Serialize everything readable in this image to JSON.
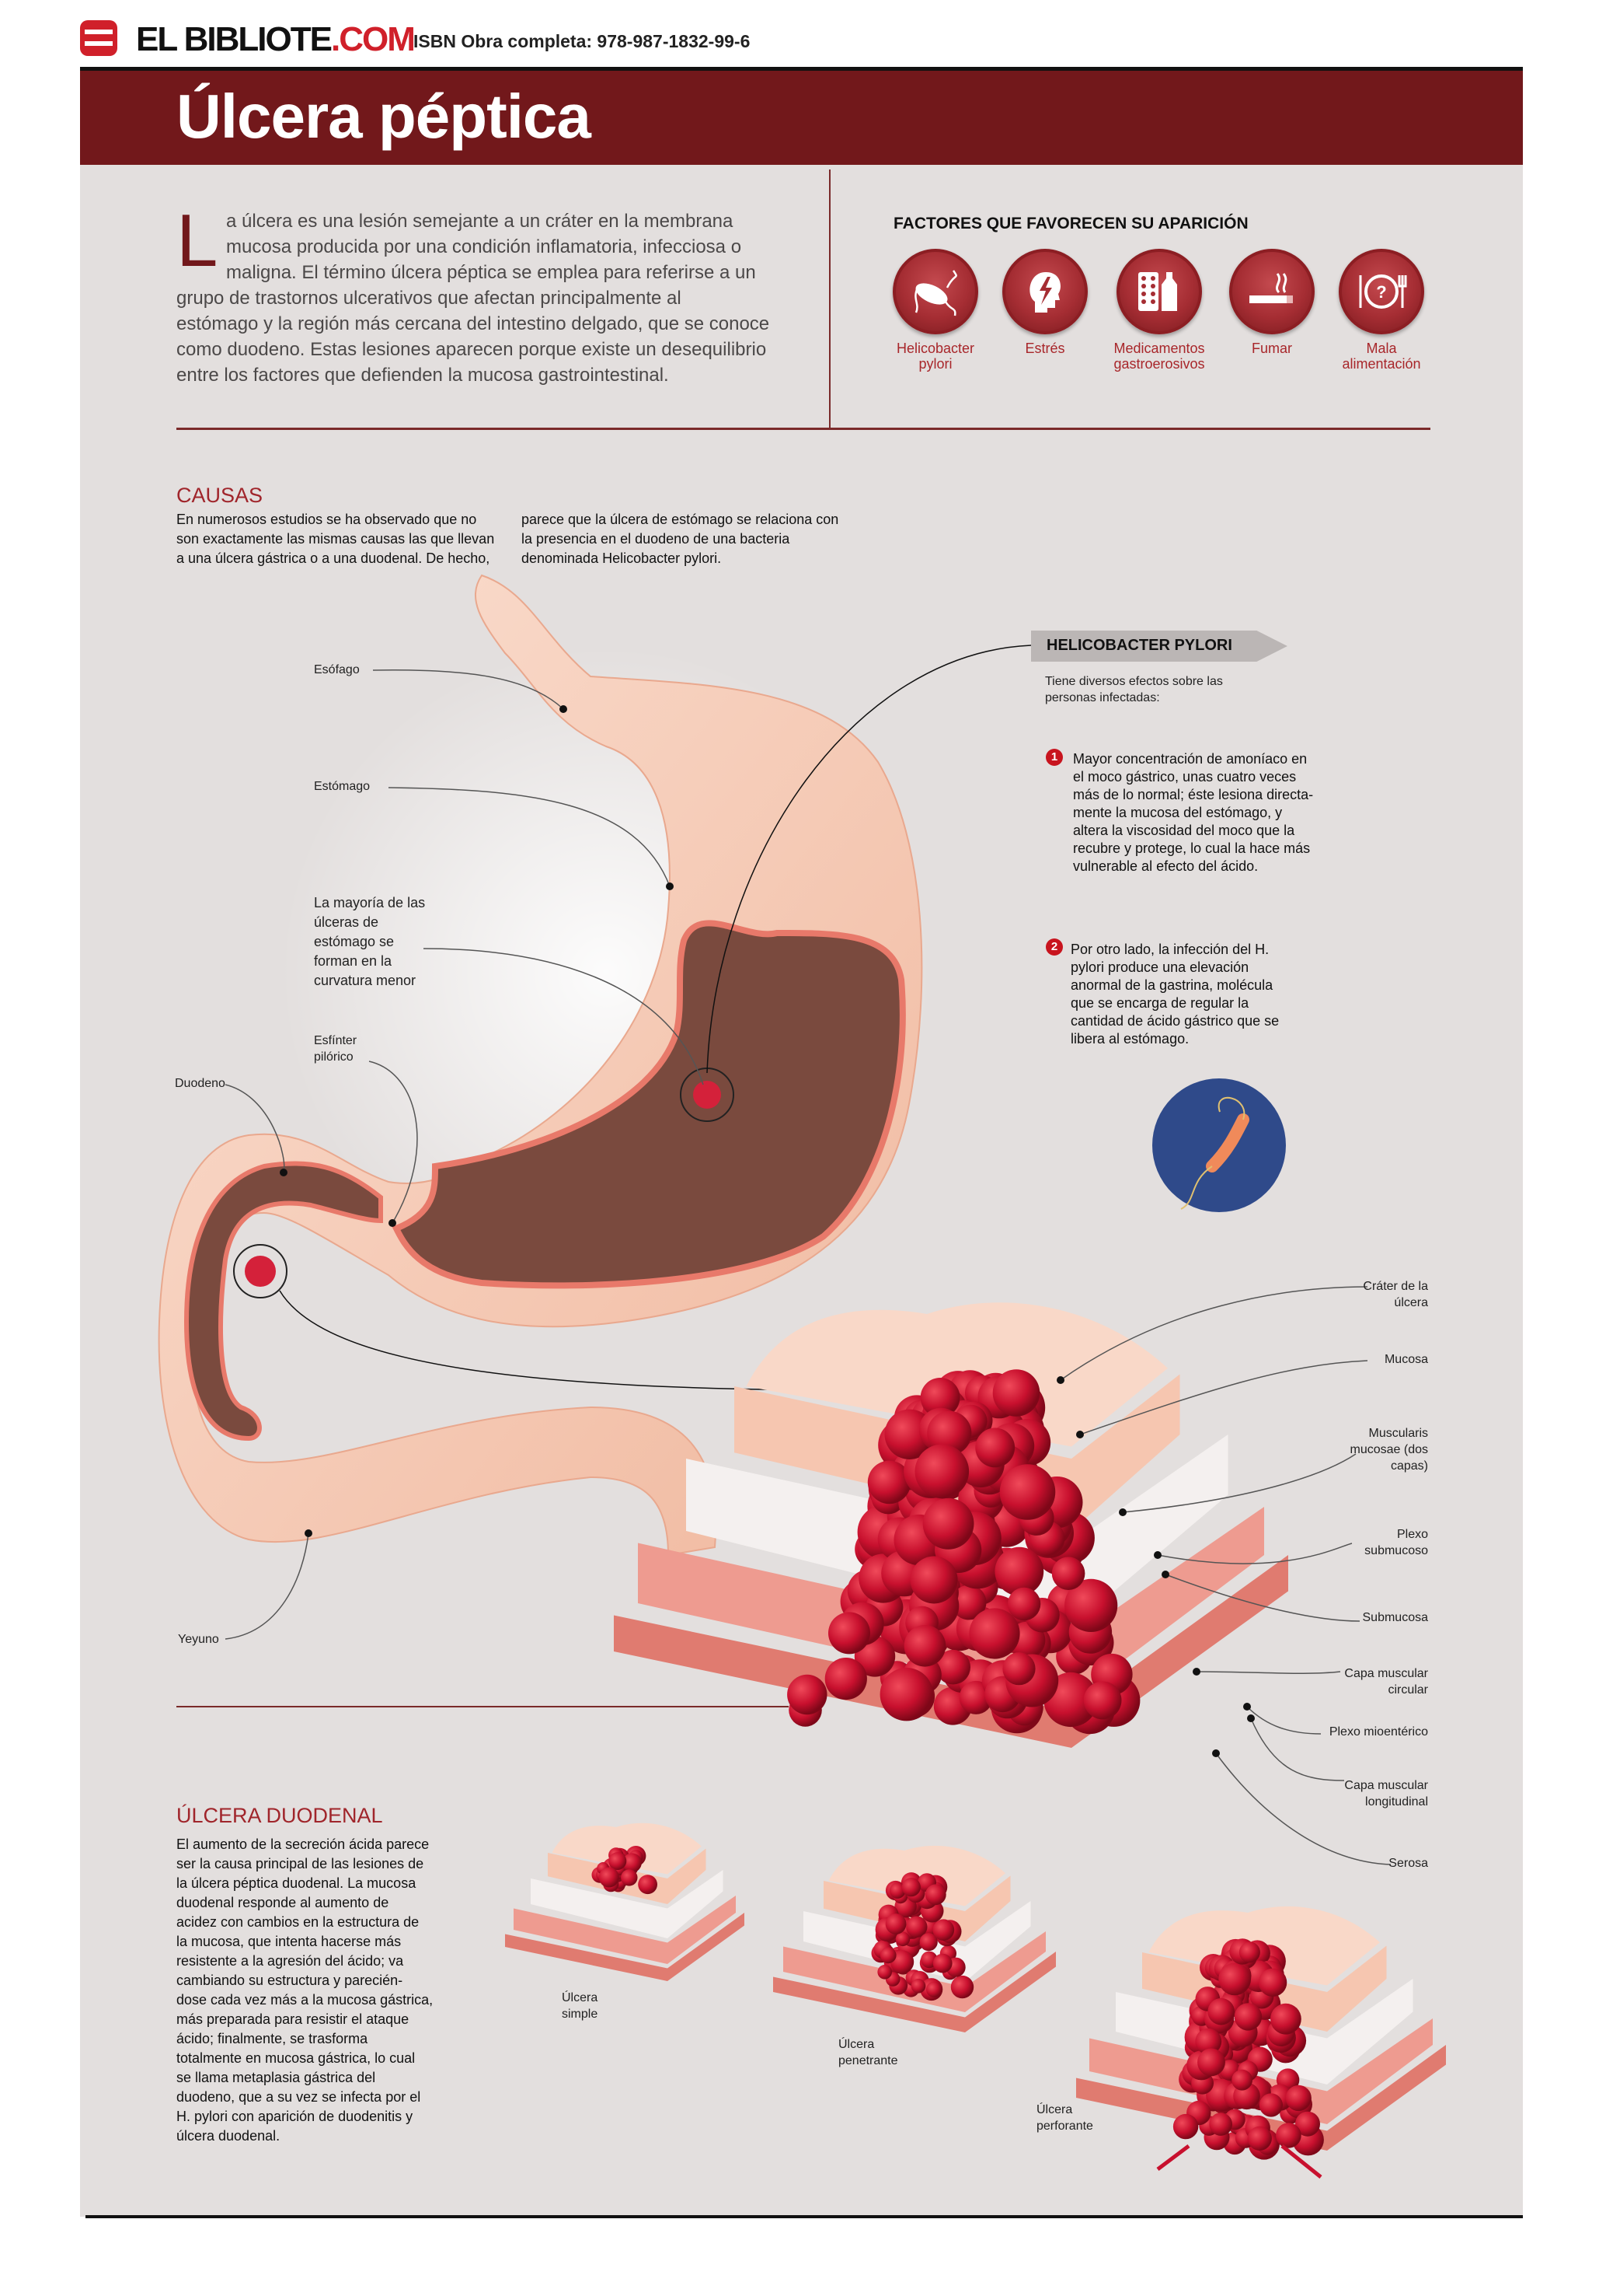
{
  "header": {
    "logo_text": "EL BIBLIOTE",
    "logo_suffix": ".COM",
    "isbn": "ISBN Obra completa: 978-987-1832-99-6",
    "title": "Úlcera péptica"
  },
  "intro": {
    "dropcap": "L",
    "lines": [
      "a úlcera es una lesión semejante a un cráter en la membrana",
      "mucosa producida por una condición inflamatoria, infecciosa o",
      "maligna. El término úlcera péptica se emplea para referirse a un",
      "grupo de trastornos ulcerativos que afectan principalmente al",
      "estómago y la región más cercana del intestino delgado, que se conoce",
      "como duodeno. Estas lesiones aparecen porque existe un desequilibrio",
      "entre los factores que defienden la mucosa gastrointestinal."
    ]
  },
  "factors": {
    "title": "FACTORES QUE FAVORECEN SU APARICIÓN",
    "items": [
      {
        "icon": "bacteria-icon",
        "label1": "Helicobacter",
        "label2": "pylori"
      },
      {
        "icon": "stress-head-icon",
        "label1": "Estrés",
        "label2": ""
      },
      {
        "icon": "medicine-icon",
        "label1": "Medicamentos",
        "label2": "gastroerosivos"
      },
      {
        "icon": "cigarette-icon",
        "label1": "Fumar",
        "label2": ""
      },
      {
        "icon": "plate-icon",
        "label1": "Mala",
        "label2": "alimentación"
      }
    ]
  },
  "causas": {
    "title": "CAUSAS",
    "col1": [
      "En numerosos estudios se ha observado que no",
      "son exactamente las mismas causas las que llevan",
      "a una úlcera gástrica o a una duodenal. De hecho,"
    ],
    "col2": [
      "parece que la úlcera de estómago se relaciona con",
      "la presencia en el duodeno de una bacteria",
      "denominada Helicobacter pylori."
    ]
  },
  "anatomy": {
    "esofago": "Esófago",
    "estomago": "Estómago",
    "curvatura": [
      "La mayoría de las",
      "úlceras de",
      "estómago se",
      "forman en la",
      "curvatura menor"
    ],
    "esfinter": [
      "Esfínter",
      "pilórico"
    ],
    "duodeno": "Duodeno",
    "yeyuno": "Yeyuno"
  },
  "hp": {
    "title": "HELICOBACTER PYLORI",
    "intro": [
      "Tiene diversos efectos sobre las",
      "personas infectadas:"
    ],
    "items": [
      {
        "num": "1",
        "lines": [
          "Mayor concentración de amoníaco en",
          "el moco gástrico, unas cuatro veces",
          "más de lo normal; éste lesiona directa-",
          "mente la mucosa del estómago, y",
          "altera la viscosidad del moco que la",
          "recubre y protege, lo cual la hace más",
          "vulnerable al efecto del ácido."
        ]
      },
      {
        "num": "2",
        "lines": [
          "Por otro lado, la infección del H.",
          "pylori produce una elevación",
          "anormal de la gastrina, molécula",
          "que se encarga de regular la",
          "cantidad de ácido gástrico que se",
          "libera al estómago."
        ]
      }
    ]
  },
  "layers": {
    "crater": [
      "Cráter de la",
      "úlcera"
    ],
    "mucosa": [
      "Mucosa"
    ],
    "muscularis": [
      "Muscularis",
      "mucosae (dos",
      "capas)"
    ],
    "plexo_sub": [
      "Plexo",
      "submucoso"
    ],
    "submucosa": [
      "Submucosa"
    ],
    "circular": [
      "Capa muscular",
      "circular"
    ],
    "mioenterico": [
      "Plexo mioentérico"
    ],
    "longitudinal": [
      "Capa muscular",
      "longitudinal"
    ],
    "serosa": [
      "Serosa"
    ]
  },
  "duodenal": {
    "title": "ÚLCERA DUODENAL",
    "lines": [
      "El aumento de la secreción ácida parece",
      "ser la causa principal de las lesiones de",
      "la úlcera péptica duodenal. La mucosa",
      "duodenal responde al aumento de",
      "acidez con cambios en la estructura de",
      "la mucosa, que intenta hacerse más",
      "resistente a la agresión del ácido; va",
      "cambiando su estructura y parecién-",
      "dose cada vez más a la mucosa gástrica,",
      "más preparada para resistir el ataque",
      "ácido; finalmente, se trasforma",
      "totalmente en mucosa gástrica, lo cual",
      "se llama metaplasia gástrica del",
      "duodeno, que a su vez se infecta por el",
      "H. pylori con aparición de duodenitis y",
      "úlcera duodenal."
    ],
    "types": [
      {
        "l1": "Úlcera",
        "l2": "simple"
      },
      {
        "l1": "Úlcera",
        "l2": "penetrante"
      },
      {
        "l1": "Úlcera",
        "l2": "perforante"
      }
    ]
  },
  "colors": {
    "brand_red": "#72181b",
    "accent_red": "#a0252b",
    "ulcer_red": "#c8102e",
    "panel": "#e3dfde"
  }
}
